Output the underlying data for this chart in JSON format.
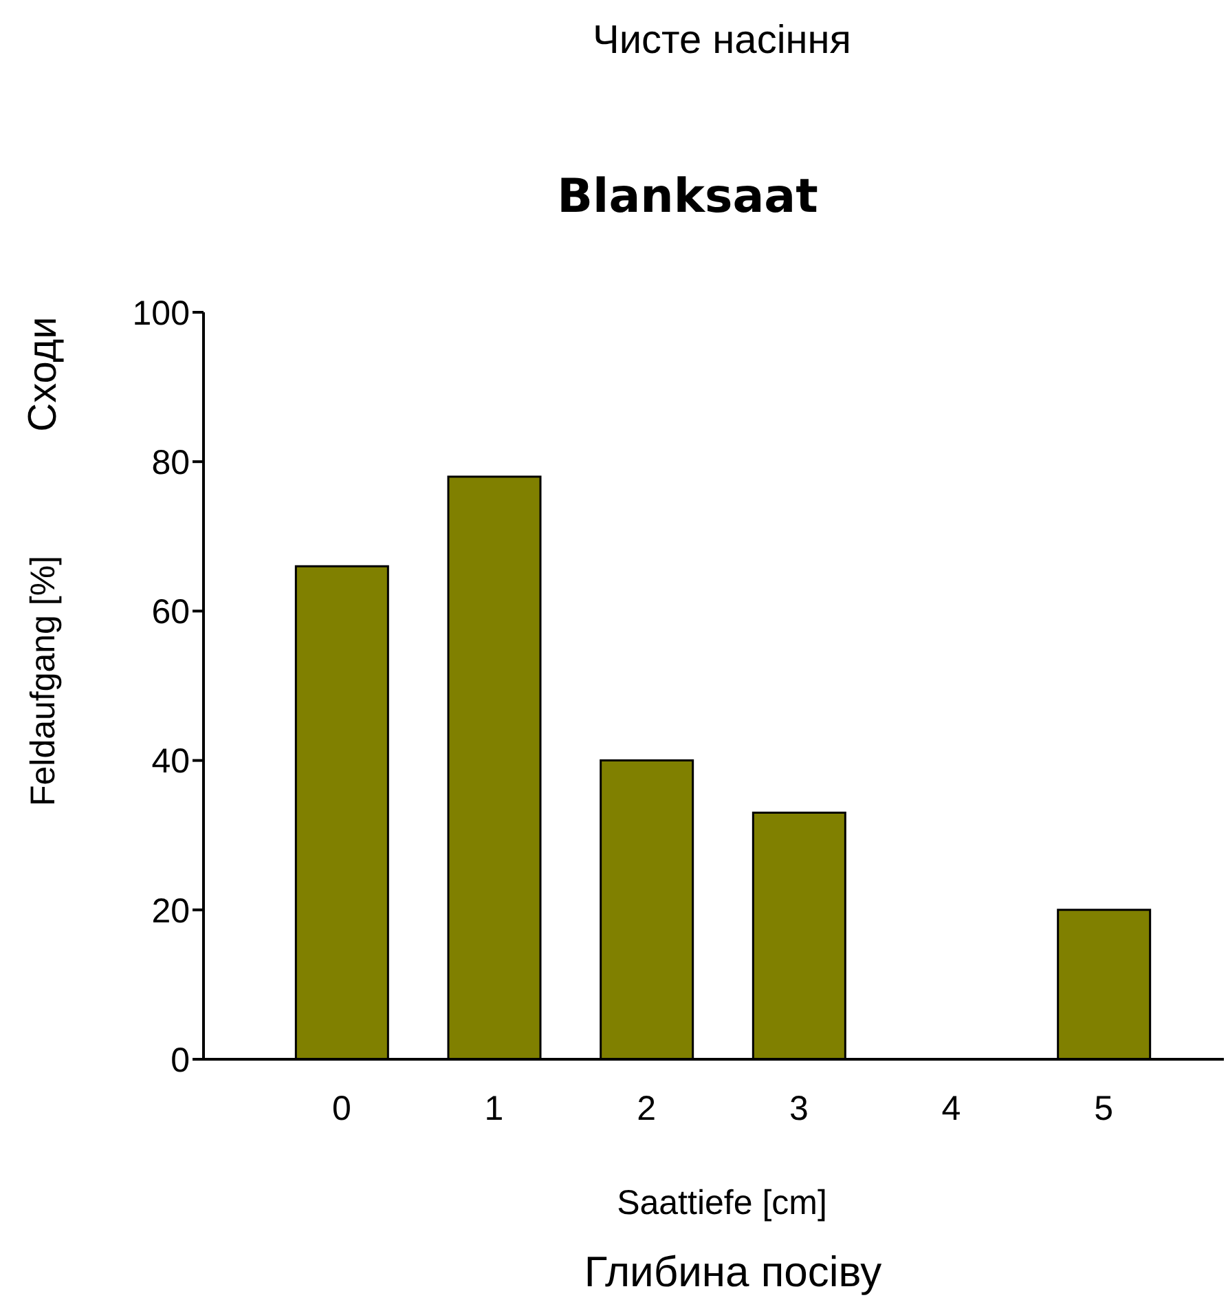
{
  "chart_data": {
    "type": "bar",
    "title": "Blanksaat",
    "xlabel": "Saattiefe [cm]",
    "ylabel": "Feldaufgang [%]",
    "annotations": [
      "Чисте насіння",
      "Сходи",
      "Глибина посіву"
    ],
    "categories": [
      "0",
      "1",
      "2",
      "3",
      "4",
      "5"
    ],
    "values": [
      66,
      78,
      40,
      33,
      0,
      20
    ],
    "color": "#808000",
    "ylim": [
      0,
      100
    ],
    "yticks": [
      0,
      20,
      40,
      60,
      80,
      100
    ],
    "grid": false
  }
}
